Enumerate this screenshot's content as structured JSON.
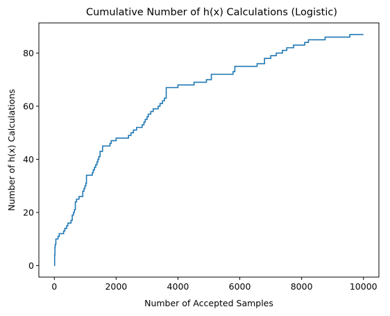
{
  "chart_data": {
    "type": "line",
    "title": "Cumulative Number of h(x) Calculations (Logistic)",
    "xlabel": "Number of Accepted Samples",
    "ylabel": "Number of h(x) Calculations",
    "xlim": [
      -500,
      10500
    ],
    "ylim": [
      -4.35,
      91.35
    ],
    "xticks": [
      0,
      2000,
      4000,
      6000,
      8000,
      10000
    ],
    "xtick_labels": [
      "0",
      "2000",
      "4000",
      "6000",
      "8000",
      "10000"
    ],
    "yticks": [
      0,
      20,
      40,
      60,
      80
    ],
    "ytick_labels": [
      "0",
      "20",
      "40",
      "60",
      "80"
    ],
    "grid": false,
    "legend": "none",
    "step": true,
    "series": [
      {
        "color": "#1f77b4",
        "x": [
          0,
          10,
          20,
          30,
          50,
          80,
          120,
          160,
          240,
          300,
          340,
          400,
          440,
          480,
          540,
          580,
          620,
          650,
          680,
          720,
          800,
          880,
          920,
          960,
          990,
          1020,
          1040,
          1200,
          1230,
          1260,
          1300,
          1340,
          1380,
          1410,
          1440,
          1480,
          1560,
          1720,
          1800,
          1840,
          2000,
          2400,
          2480,
          2560,
          2660,
          2840,
          2900,
          2940,
          3000,
          3040,
          3120,
          3200,
          3360,
          3420,
          3500,
          3560,
          3620,
          3760,
          4000,
          4240,
          4520,
          4920,
          5080,
          5740,
          5780,
          5840,
          6200,
          6560,
          6800,
          7000,
          7180,
          7380,
          7520,
          7740,
          8100,
          8220,
          8760,
          9560,
          10000
        ],
        "y": [
          0,
          4,
          7,
          8,
          10,
          10,
          11,
          12,
          12,
          13,
          14,
          15,
          16,
          16,
          17,
          19,
          20,
          21,
          24,
          25,
          26,
          26,
          28,
          29,
          30,
          31,
          34,
          34,
          35,
          36,
          37,
          38,
          39,
          40,
          41,
          43,
          45,
          45,
          46,
          47,
          48,
          49,
          50,
          51,
          52,
          53,
          54,
          55,
          56,
          57,
          58,
          59,
          60,
          61,
          62,
          63,
          67,
          67,
          68,
          68,
          69,
          70,
          72,
          72,
          73,
          75,
          75,
          76,
          78,
          79,
          80,
          81,
          82,
          83,
          84,
          85,
          86,
          87,
          87
        ]
      }
    ]
  }
}
